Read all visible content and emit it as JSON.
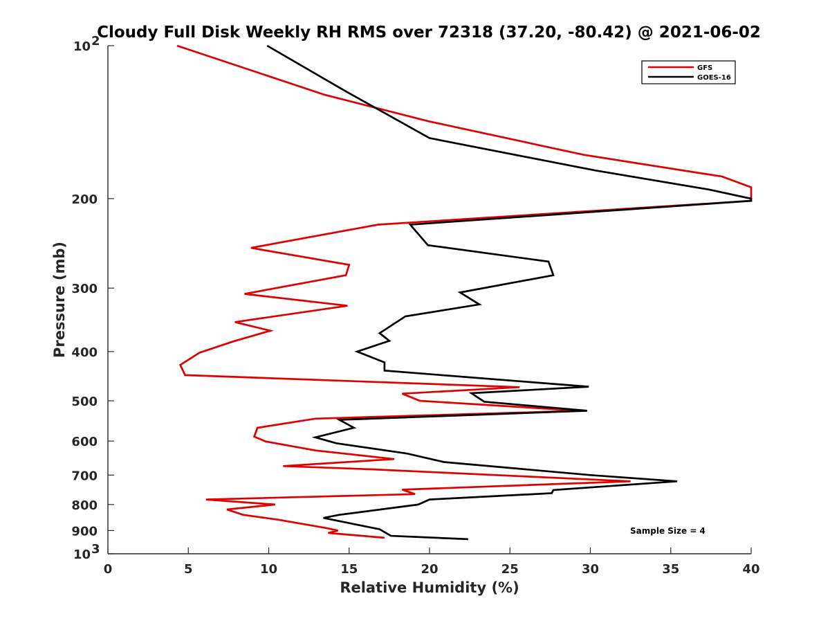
{
  "chart_data": {
    "type": "line",
    "title": "Cloudy Full Disk Weekly RH RMS over 72318 (37.20, -80.42) @ 2021-06-02",
    "xlabel": "Relative Humidity (%)",
    "ylabel": "Pressure (mb)",
    "xlim": [
      0,
      40
    ],
    "ylim": [
      100,
      1000
    ],
    "yscale": "log",
    "y_reversed": true,
    "x_ticks": [
      0,
      5,
      10,
      15,
      20,
      25,
      30,
      35,
      40
    ],
    "x_tick_labels": [
      "0",
      "5",
      "10",
      "15",
      "20",
      "25",
      "30",
      "35",
      "40"
    ],
    "y_ticks": [
      100,
      200,
      300,
      400,
      500,
      600,
      700,
      800,
      900,
      1000
    ],
    "y_tick_labels": [
      {
        "base": "10",
        "exp": "2"
      },
      {
        "base": "200",
        "exp": ""
      },
      {
        "base": "300",
        "exp": ""
      },
      {
        "base": "400",
        "exp": ""
      },
      {
        "base": "500",
        "exp": ""
      },
      {
        "base": "600",
        "exp": ""
      },
      {
        "base": "700",
        "exp": ""
      },
      {
        "base": "800",
        "exp": ""
      },
      {
        "base": "900",
        "exp": ""
      },
      {
        "base": "10",
        "exp": "3"
      }
    ],
    "legend_position": "top-right",
    "annotation": "Sample Size = 4",
    "series": [
      {
        "name": "GFS",
        "color": "#e00000",
        "points": [
          [
            4.3,
            100
          ],
          [
            13.5,
            125
          ],
          [
            20,
            141
          ],
          [
            29.6,
            164
          ],
          [
            38.2,
            181
          ],
          [
            40,
            190
          ],
          [
            40,
            202
          ],
          [
            16.8,
            225
          ],
          [
            8.9,
            250
          ],
          [
            15,
            270
          ],
          [
            14.8,
            283
          ],
          [
            8.5,
            308
          ],
          [
            14.9,
            325
          ],
          [
            7.9,
            350
          ],
          [
            10.1,
            364
          ],
          [
            7.8,
            382
          ],
          [
            5.7,
            402
          ],
          [
            4.5,
            425
          ],
          [
            4.8,
            445
          ],
          [
            25.6,
            470
          ],
          [
            18.3,
            484
          ],
          [
            19.4,
            500
          ],
          [
            29.4,
            523
          ],
          [
            12.9,
            542
          ],
          [
            9.3,
            565
          ],
          [
            9.1,
            588
          ],
          [
            9.8,
            601
          ],
          [
            12.9,
            626
          ],
          [
            17.8,
            651
          ],
          [
            10.9,
            672
          ],
          [
            16.4,
            682
          ],
          [
            32.5,
            720
          ],
          [
            18.3,
            748
          ],
          [
            19.1,
            763
          ],
          [
            6.1,
            782
          ],
          [
            10.4,
            800
          ],
          [
            7.4,
            818
          ],
          [
            8.4,
            838
          ],
          [
            10.6,
            857
          ],
          [
            13.6,
            890
          ],
          [
            14.3,
            900
          ],
          [
            13.7,
            910
          ],
          [
            17.2,
            930
          ]
        ]
      },
      {
        "name": "GOES-16",
        "color": "#000000",
        "points": [
          [
            9.9,
            100
          ],
          [
            14.8,
            123
          ],
          [
            20,
            152
          ],
          [
            30.3,
            176
          ],
          [
            37.4,
            192
          ],
          [
            40,
            200
          ],
          [
            40,
            202
          ],
          [
            18.8,
            225
          ],
          [
            19.9,
            247
          ],
          [
            27.4,
            266
          ],
          [
            27.7,
            283
          ],
          [
            21.9,
            306
          ],
          [
            23.1,
            323
          ],
          [
            18.5,
            341
          ],
          [
            16.9,
            368
          ],
          [
            17.5,
            381
          ],
          [
            15.5,
            400
          ],
          [
            17.2,
            420
          ],
          [
            17.2,
            436
          ],
          [
            29.9,
            469
          ],
          [
            22.6,
            483
          ],
          [
            23.4,
            502
          ],
          [
            29.8,
            523
          ],
          [
            14.4,
            545
          ],
          [
            15.3,
            565
          ],
          [
            12.9,
            590
          ],
          [
            14.2,
            606
          ],
          [
            18.6,
            635
          ],
          [
            20.9,
            660
          ],
          [
            30,
            700
          ],
          [
            35.4,
            720
          ],
          [
            27.7,
            749
          ],
          [
            27.6,
            760
          ],
          [
            20,
            782
          ],
          [
            19.3,
            800
          ],
          [
            14.4,
            838
          ],
          [
            13.4,
            850
          ],
          [
            16.9,
            895
          ],
          [
            17.6,
            922
          ],
          [
            22.4,
            936
          ]
        ]
      }
    ]
  }
}
